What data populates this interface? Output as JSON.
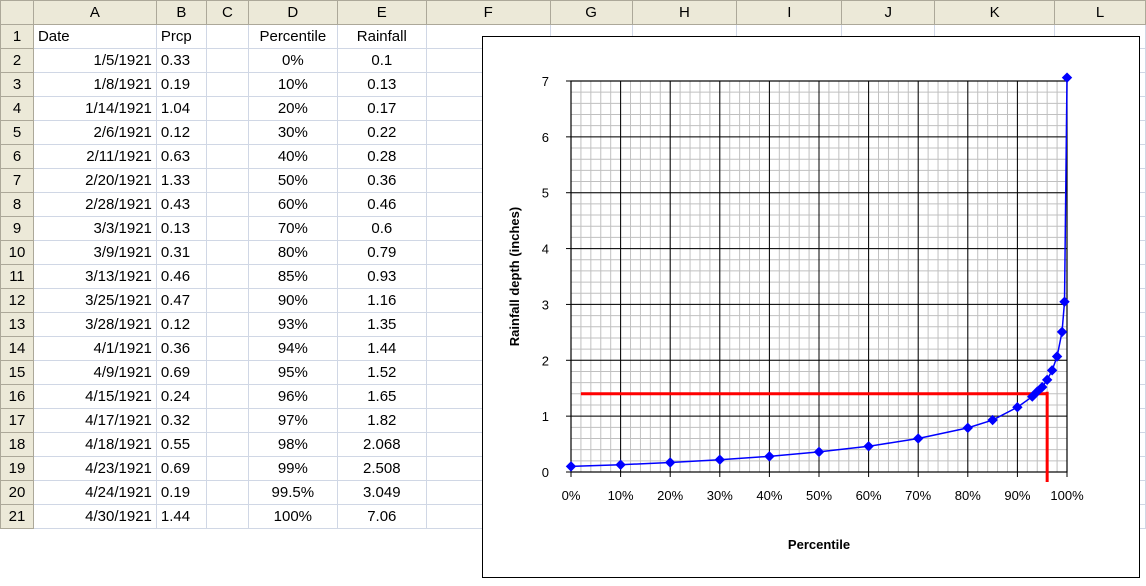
{
  "columns": [
    "A",
    "B",
    "C",
    "D",
    "E",
    "F",
    "G",
    "H",
    "I",
    "J",
    "K",
    "L"
  ],
  "rows": [
    {
      "n": "1",
      "a": "Date",
      "b": "Prcp",
      "d": "Percentile",
      "e": "Rainfall"
    },
    {
      "n": "2",
      "a": "1/5/1921",
      "b": "0.33",
      "d": "0%",
      "e": "0.1"
    },
    {
      "n": "3",
      "a": "1/8/1921",
      "b": "0.19",
      "d": "10%",
      "e": "0.13"
    },
    {
      "n": "4",
      "a": "1/14/1921",
      "b": "1.04",
      "d": "20%",
      "e": "0.17"
    },
    {
      "n": "5",
      "a": "2/6/1921",
      "b": "0.12",
      "d": "30%",
      "e": "0.22"
    },
    {
      "n": "6",
      "a": "2/11/1921",
      "b": "0.63",
      "d": "40%",
      "e": "0.28"
    },
    {
      "n": "7",
      "a": "2/20/1921",
      "b": "1.33",
      "d": "50%",
      "e": "0.36"
    },
    {
      "n": "8",
      "a": "2/28/1921",
      "b": "0.43",
      "d": "60%",
      "e": "0.46"
    },
    {
      "n": "9",
      "a": "3/3/1921",
      "b": "0.13",
      "d": "70%",
      "e": "0.6"
    },
    {
      "n": "10",
      "a": "3/9/1921",
      "b": "0.31",
      "d": "80%",
      "e": "0.79"
    },
    {
      "n": "11",
      "a": "3/13/1921",
      "b": "0.46",
      "d": "85%",
      "e": "0.93"
    },
    {
      "n": "12",
      "a": "3/25/1921",
      "b": "0.47",
      "d": "90%",
      "e": "1.16"
    },
    {
      "n": "13",
      "a": "3/28/1921",
      "b": "0.12",
      "d": "93%",
      "e": "1.35"
    },
    {
      "n": "14",
      "a": "4/1/1921",
      "b": "0.36",
      "d": "94%",
      "e": "1.44"
    },
    {
      "n": "15",
      "a": "4/9/1921",
      "b": "0.69",
      "d": "95%",
      "e": "1.52"
    },
    {
      "n": "16",
      "a": "4/15/1921",
      "b": "0.24",
      "d": "96%",
      "e": "1.65"
    },
    {
      "n": "17",
      "a": "4/17/1921",
      "b": "0.32",
      "d": "97%",
      "e": "1.82"
    },
    {
      "n": "18",
      "a": "4/18/1921",
      "b": "0.55",
      "d": "98%",
      "e": "2.068"
    },
    {
      "n": "19",
      "a": "4/23/1921",
      "b": "0.69",
      "d": "99%",
      "e": "2.508"
    },
    {
      "n": "20",
      "a": "4/24/1921",
      "b": "0.19",
      "d": "99.5%",
      "e": "3.049"
    },
    {
      "n": "21",
      "a": "4/30/1921",
      "b": "1.44",
      "d": "100%",
      "e": "7.06"
    }
  ],
  "chart_data": {
    "type": "scatter",
    "title": "",
    "xlabel": "Percentile",
    "ylabel": "Rainfall depth (inches)",
    "x": [
      0,
      10,
      20,
      30,
      40,
      50,
      60,
      70,
      80,
      85,
      90,
      93,
      94,
      95,
      96,
      97,
      98,
      99,
      99.5,
      100
    ],
    "y": [
      0.1,
      0.13,
      0.17,
      0.22,
      0.28,
      0.36,
      0.46,
      0.6,
      0.79,
      0.93,
      1.16,
      1.35,
      1.44,
      1.52,
      1.65,
      1.82,
      2.068,
      2.508,
      3.049,
      7.06
    ],
    "xlim": [
      0,
      100
    ],
    "ylim": [
      0,
      7
    ],
    "x_ticks": [
      "0%",
      "10%",
      "20%",
      "30%",
      "40%",
      "50%",
      "60%",
      "70%",
      "80%",
      "90%",
      "100%"
    ],
    "y_ticks": [
      "0",
      "1",
      "2",
      "3",
      "4",
      "5",
      "6",
      "7"
    ],
    "grid": true,
    "series_color": "#0000ff",
    "reference_lines": {
      "color": "#ff0000",
      "horizontal_y": 1.4,
      "horizontal_x_range": [
        2,
        96
      ],
      "vertical_x": 96
    }
  }
}
